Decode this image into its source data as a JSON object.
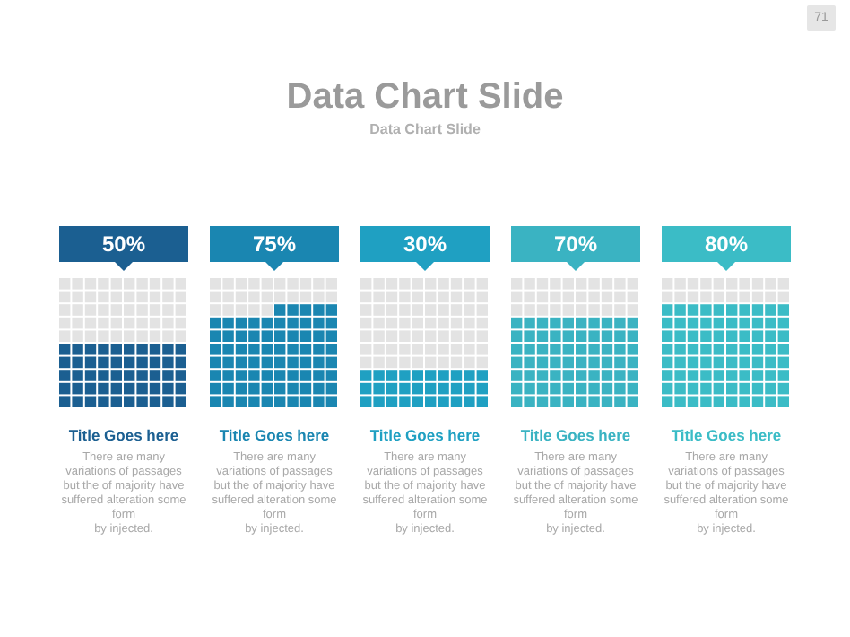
{
  "chart_data": [
    {
      "type": "other",
      "title": "Data Chart Slide",
      "subtitle": "Data Chart Slide",
      "annotations": [
        "71"
      ]
    },
    {
      "type": "other",
      "title": "Title Goes here",
      "values": [
        50
      ],
      "value_labels": [
        "50%"
      ],
      "color": "#1b5f91",
      "annotations": [
        "There are many\nvariations of passages\nbut the of majority have\nsuffered alteration some\nform\nby injected."
      ]
    },
    {
      "type": "other",
      "title": "Title Goes here",
      "values": [
        75
      ],
      "value_labels": [
        "75%"
      ],
      "color": "#1a86b1",
      "annotations": [
        "There are many\nvariations of passages\nbut the of majority have\nsuffered alteration some\nform\nby injected."
      ]
    },
    {
      "type": "other",
      "title": "Title Goes here",
      "values": [
        30
      ],
      "value_labels": [
        "30%"
      ],
      "color": "#1fa0c2",
      "annotations": [
        "There are many\nvariations of passages\nbut the of majority have\nsuffered alteration some\nform\nby injected."
      ]
    },
    {
      "type": "other",
      "title": "Title Goes here",
      "values": [
        70
      ],
      "value_labels": [
        "70%"
      ],
      "color": "#3ab3c2",
      "annotations": [
        "There are many\nvariations of passages\nbut the of majority have\nsuffered alteration some\nform\nby injected."
      ]
    },
    {
      "type": "other",
      "title": "Title Goes here",
      "values": [
        80
      ],
      "value_labels": [
        "80%"
      ],
      "color": "#3bbcc6",
      "annotations": [
        "There are many\nvariations of passages\nbut the of majority have\nsuffered alteration some\nform\nby injected."
      ]
    }
  ]
}
